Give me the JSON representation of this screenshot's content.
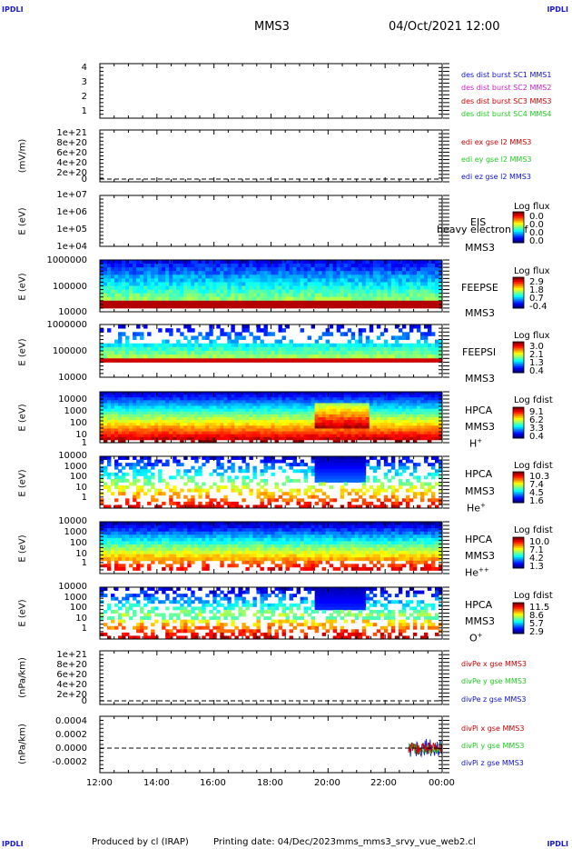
{
  "header": {
    "corner_label": "IPDLI",
    "spacecraft": "MMS3",
    "datetime": "04/Oct/2021 12:00"
  },
  "footer": {
    "produced_by": "Produced by cl (IRAP)",
    "printing_date": "Printing date: 04/Dec/2023",
    "file_name": "mms_mms3_srvy_vue_web2.cl"
  },
  "colors": {
    "blue": "#1111cc",
    "magenta": "#cc22cc",
    "red": "#cc0000",
    "green": "#22cc22"
  },
  "chart_data": {
    "type": "line",
    "time_axis": {
      "start": "2021-10-04T12:00",
      "end": "2021-10-05T00:00",
      "tick_labels": [
        "12:00",
        "14:00",
        "16:00",
        "18:00",
        "20:00",
        "22:00",
        "00:00"
      ]
    },
    "panels": [
      {
        "id": "des-dist-burst",
        "ylabel": "",
        "ticks": [
          "4",
          "3",
          "2",
          "1"
        ],
        "legend": [
          "des dist burst SC1 MMS1",
          "des dist burst SC2 MMS2",
          "des dist burst SC3 MMS3",
          "des dist burst SC4 MMS4"
        ]
      },
      {
        "id": "edi",
        "ylabel": "(mV/m)",
        "ticks": [
          "1e+21",
          "8e+20",
          "6e+20",
          "4e+20",
          "2e+20",
          "0"
        ],
        "legend": [
          "edi ex gse l2 MMS3",
          "edi ey gse l2 MMS3",
          "edi ez gse l2 MMS3"
        ]
      },
      {
        "id": "eis",
        "ylabel": "E (eV)",
        "ticks": [
          "1e+07",
          "1e+06",
          "1e+05",
          "1e+04"
        ],
        "instrument": [
          "EIS",
          "heavy electron tof",
          "MMS3"
        ],
        "colorbar": {
          "title": "Log flux",
          "values": [
            "0.0",
            "0.0",
            "0.0",
            "0.0"
          ]
        }
      },
      {
        "id": "feeps-e",
        "ylabel": "E (eV)",
        "ticks": [
          "1000000",
          "100000",
          "10000"
        ],
        "instrument": [
          "FEEPSE",
          "MMS3"
        ],
        "colorbar": {
          "title": "Log flux",
          "values": [
            "2.9",
            "1.8",
            "0.7",
            "-0.4"
          ]
        }
      },
      {
        "id": "feeps-i",
        "ylabel": "E (eV)",
        "ticks": [
          "1000000",
          "100000",
          "10000"
        ],
        "instrument": [
          "FEEPSI",
          "MMS3"
        ],
        "colorbar": {
          "title": "Log flux",
          "values": [
            "3.0",
            "2.1",
            "1.3",
            "0.4"
          ]
        }
      },
      {
        "id": "hpca-h",
        "ylabel": "E (eV)",
        "ticks": [
          "10000",
          "1000",
          "100",
          "10",
          "1"
        ],
        "instrument": [
          "HPCA",
          "MMS3",
          "H",
          "+"
        ],
        "colorbar": {
          "title": "Log fdist",
          "values": [
            "9.1",
            "6.2",
            "3.3",
            "0.4"
          ]
        }
      },
      {
        "id": "hpca-he",
        "ylabel": "E (eV)",
        "ticks": [
          "10000",
          "1000",
          "100",
          "10",
          "1"
        ],
        "instrument": [
          "HPCA",
          "MMS3",
          "He",
          "+"
        ],
        "colorbar": {
          "title": "Log fdist",
          "values": [
            "10.3",
            "7.4",
            "4.5",
            "1.6"
          ]
        }
      },
      {
        "id": "hpca-hepp",
        "ylabel": "E (eV)",
        "ticks": [
          "10000",
          "1000",
          "100",
          "10",
          "1"
        ],
        "instrument": [
          "HPCA",
          "MMS3",
          "He",
          "++"
        ],
        "colorbar": {
          "title": "Log fdist",
          "values": [
            "10.0",
            "7.1",
            "4.2",
            "1.3"
          ]
        }
      },
      {
        "id": "hpca-o",
        "ylabel": "E (eV)",
        "ticks": [
          "10000",
          "1000",
          "100",
          "10",
          "1"
        ],
        "instrument": [
          "HPCA",
          "MMS3",
          "O",
          "+"
        ],
        "colorbar": {
          "title": "Log fdist",
          "values": [
            "11.5",
            "8.6",
            "5.7",
            "2.9"
          ]
        }
      },
      {
        "id": "divpe",
        "ylabel": "(nPa/km)",
        "ticks": [
          "1e+21",
          "8e+20",
          "6e+20",
          "4e+20",
          "2e+20",
          "0"
        ],
        "legend": [
          "divPe x gse MMS3",
          "divPe y gse MMS3",
          "divPe z gse MMS3"
        ]
      },
      {
        "id": "divpi",
        "ylabel": "(nPa/km)",
        "ticks": [
          "0.0004",
          "0.0002",
          "0.0000",
          "-0.0002"
        ],
        "legend": [
          "divPi x gse MMS3",
          "divPi y gse MMS3",
          "divPi z gse MMS3"
        ]
      }
    ]
  }
}
